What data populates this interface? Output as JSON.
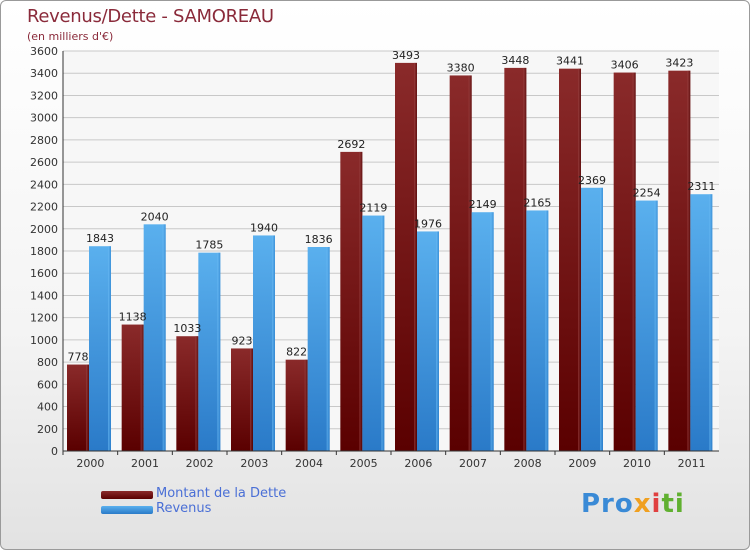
{
  "title": "Revenus/Dette - SAMOREAU",
  "subtitle": "(en milliers d'€)",
  "logo": {
    "text": "Proxiti",
    "parts": [
      "Pro",
      "x",
      "i",
      "ti"
    ]
  },
  "colors": {
    "debt": "#7a1515",
    "revenue": "#4a9fe0",
    "grid": "#c8c8c8",
    "axis": "#333333"
  },
  "chart_data": {
    "type": "bar",
    "title": "Revenus/Dette - SAMOREAU",
    "subtitle": "(en milliers d'€)",
    "categories": [
      "2000",
      "2001",
      "2002",
      "2003",
      "2004",
      "2005",
      "2006",
      "2007",
      "2008",
      "2009",
      "2010",
      "2011"
    ],
    "series": [
      {
        "name": "Montant de la Dette",
        "color": "#7a1515",
        "values": [
          778,
          1138,
          1033,
          923,
          822,
          2692,
          3493,
          3380,
          3448,
          3441,
          3406,
          3423
        ]
      },
      {
        "name": "Revenus",
        "color": "#4a9fe0",
        "values": [
          1843,
          2040,
          1785,
          1940,
          1836,
          2119,
          1976,
          2149,
          2165,
          2369,
          2254,
          2311
        ]
      }
    ],
    "ylim": [
      0,
      3600
    ],
    "yticks": [
      0,
      200,
      400,
      600,
      800,
      1000,
      1200,
      1400,
      1600,
      1800,
      2000,
      2200,
      2400,
      2600,
      2800,
      3000,
      3200,
      3400,
      3600
    ],
    "grid": true,
    "legend": "bottom-left"
  }
}
